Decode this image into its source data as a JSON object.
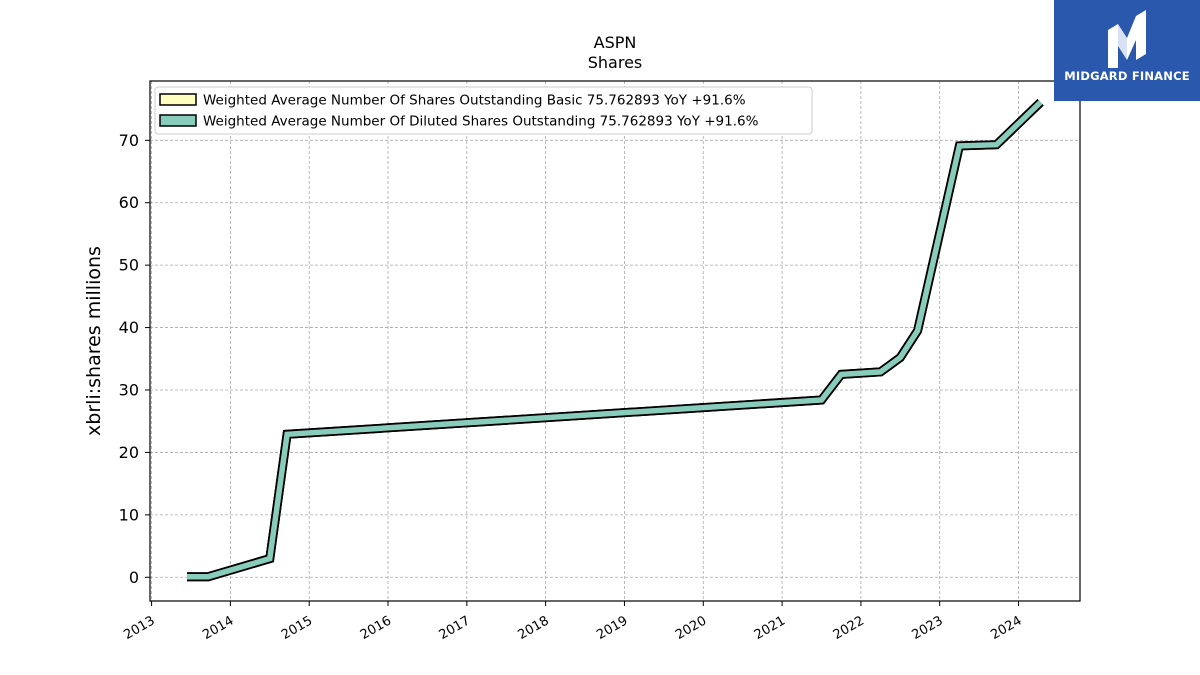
{
  "brand": {
    "name": "MIDGARD FINANCE",
    "bg_color": "#2a58ad",
    "icon": "midgard-monogram-icon"
  },
  "chart_data": {
    "type": "line",
    "title": "ASPN",
    "subtitle": "Shares",
    "ylabel": "xbrli:shares millions",
    "xlabel": "",
    "xlim": [
      2012.98,
      2024.78
    ],
    "ylim": [
      -3.8,
      79.5
    ],
    "yticks": [
      0,
      10,
      20,
      30,
      40,
      50,
      60,
      70
    ],
    "xticks": [
      "2013",
      "2014",
      "2015",
      "2016",
      "2017",
      "2018",
      "2019",
      "2020",
      "2021",
      "2022",
      "2023",
      "2024"
    ],
    "grid": true,
    "legend_position": "top-left",
    "series": [
      {
        "name": "Weighted Average Number Of Shares Outstanding Basic  75.762893 YoY +91.6%",
        "color": "#ffffc0",
        "edge_color": "#000000",
        "x": [
          2013.45,
          2013.72,
          2014.5,
          2014.72,
          2021.5,
          2021.75,
          2022.25,
          2022.5,
          2022.72,
          2023.25,
          2023.72,
          2024.28
        ],
        "y": [
          0.1,
          0.1,
          3.0,
          22.9,
          28.4,
          32.5,
          32.9,
          35.2,
          39.5,
          69.1,
          69.3,
          76.1
        ]
      },
      {
        "name": "Weighted Average Number Of Diluted Shares Outstanding  75.762893 YoY +91.6%",
        "color": "#88ccbb",
        "edge_color": "#000000",
        "x": [
          2013.45,
          2013.72,
          2014.5,
          2014.72,
          2021.5,
          2021.75,
          2022.25,
          2022.5,
          2022.72,
          2023.25,
          2023.72,
          2024.28
        ],
        "y": [
          0.1,
          0.1,
          3.0,
          22.9,
          28.4,
          32.5,
          32.9,
          35.2,
          39.5,
          69.1,
          69.3,
          76.1
        ]
      }
    ]
  }
}
